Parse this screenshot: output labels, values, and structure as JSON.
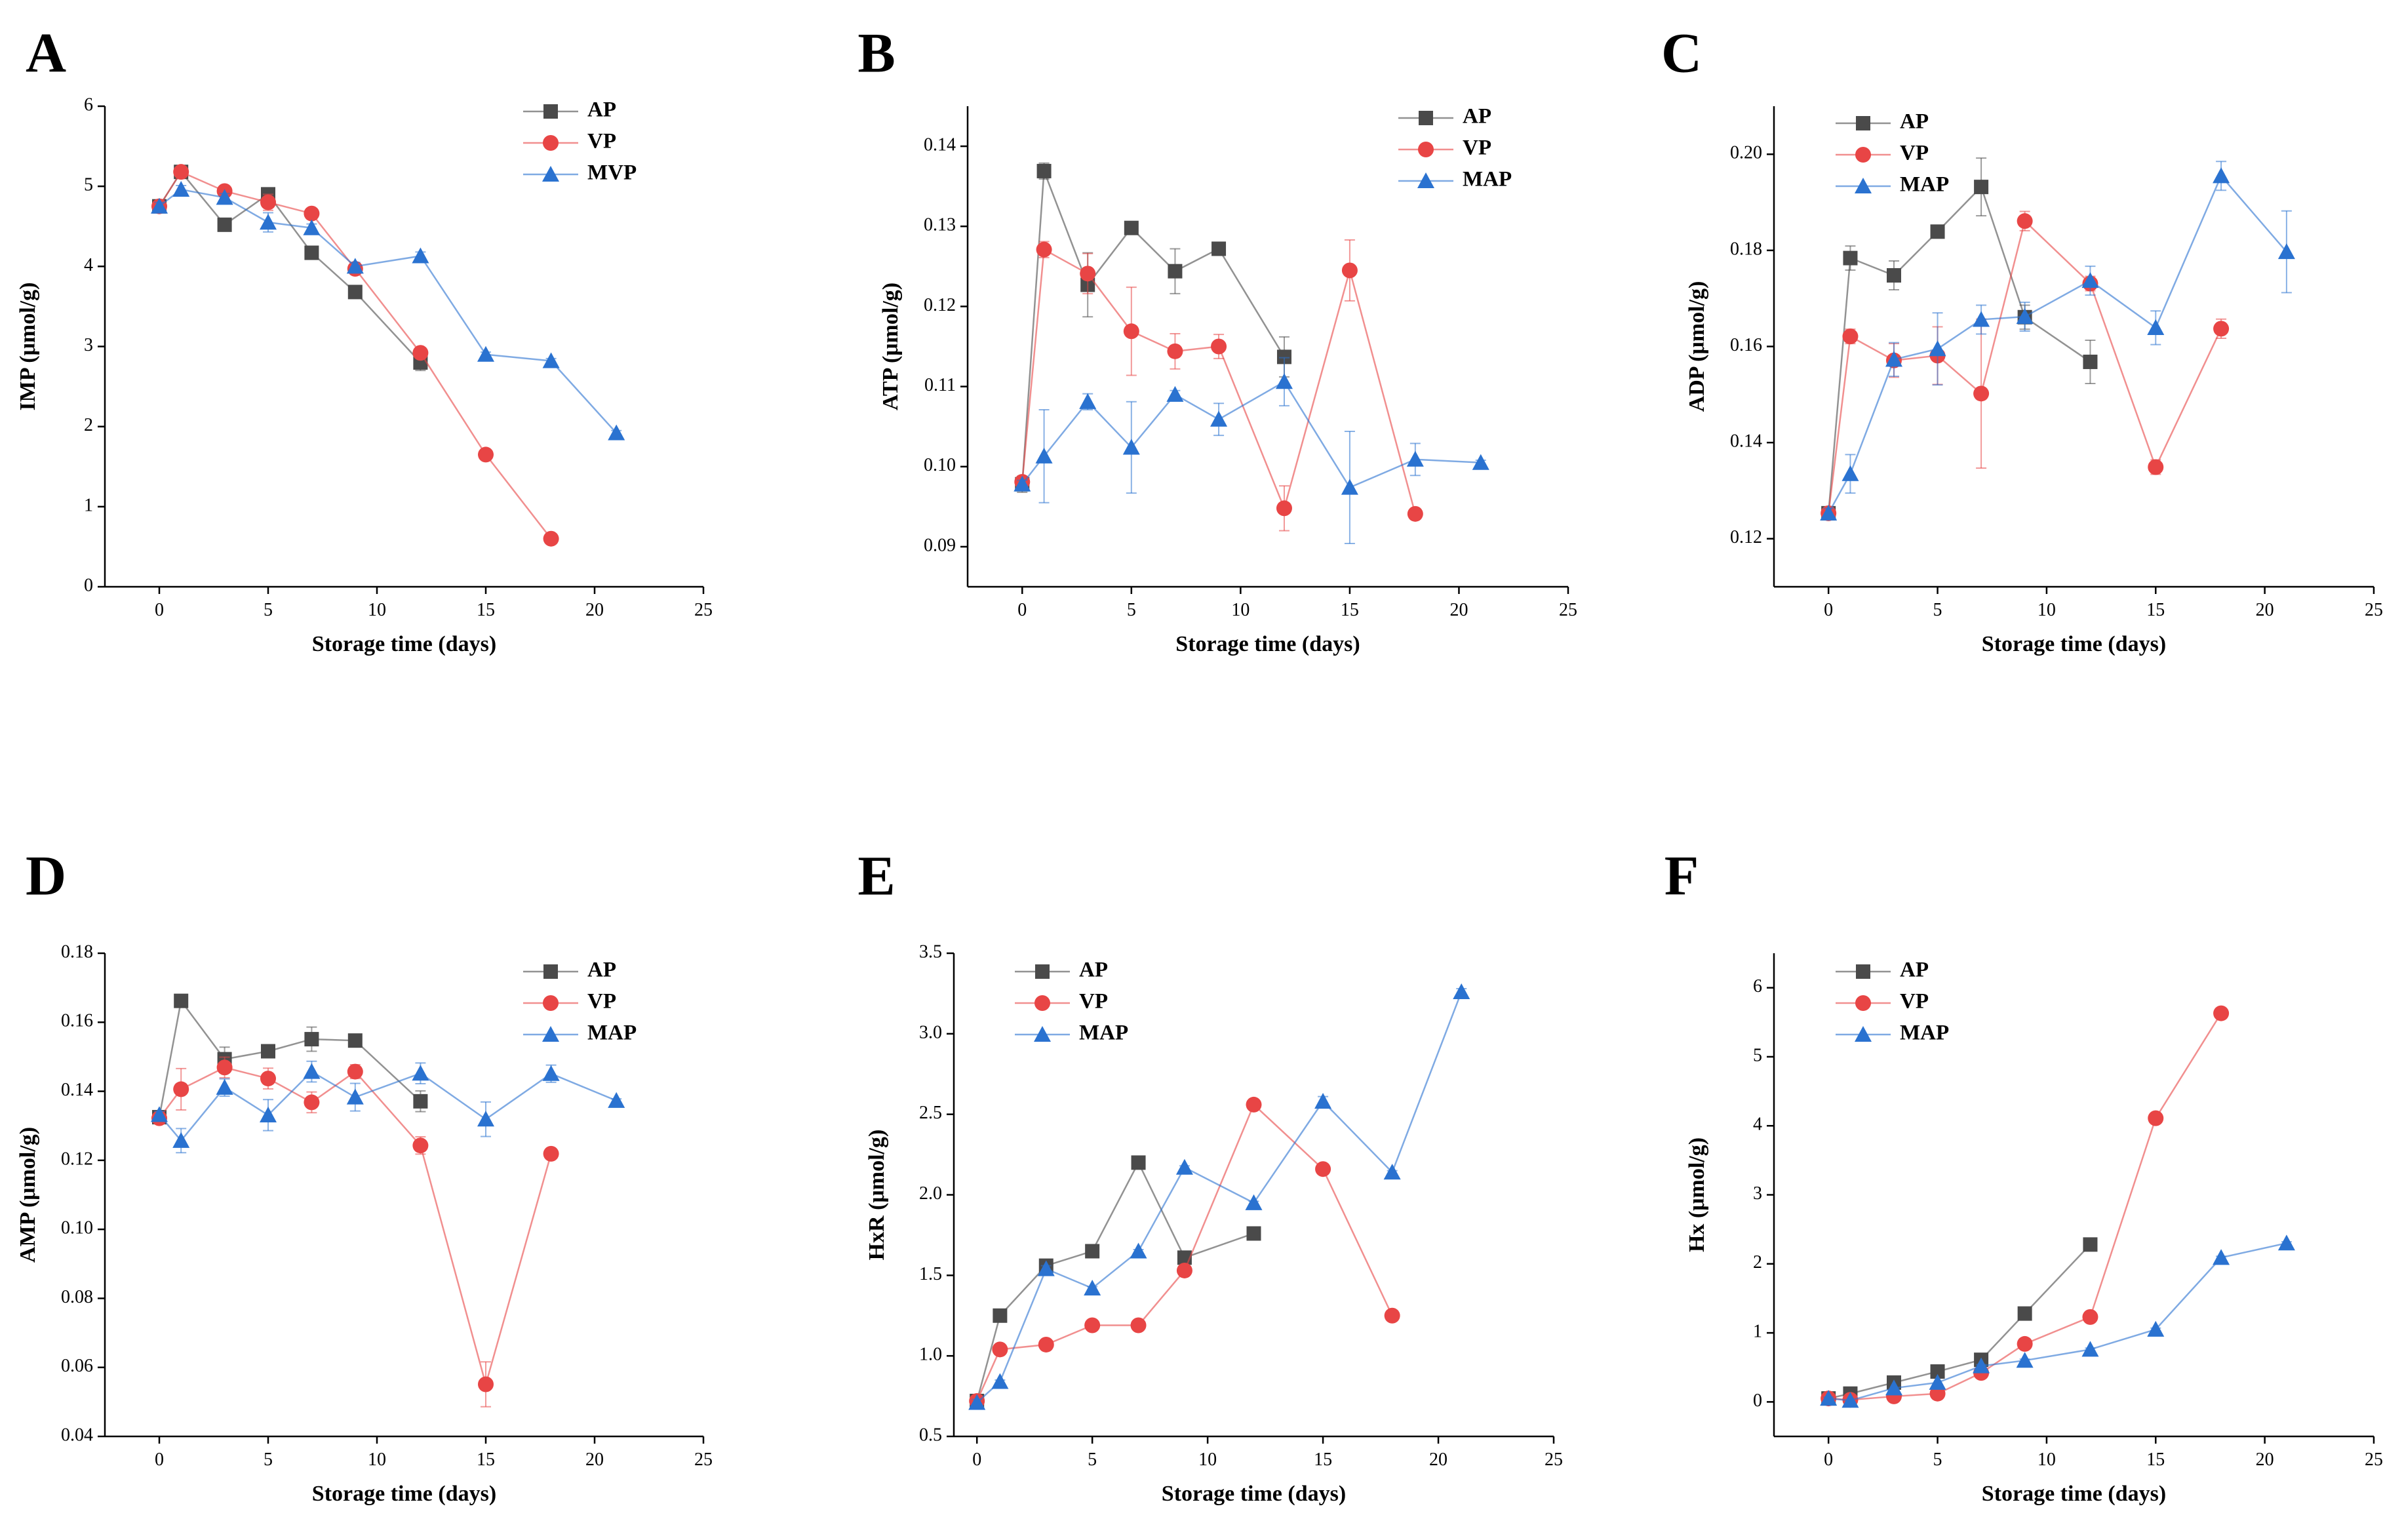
{
  "colors": {
    "AP": "#4a4a4a",
    "VP": "#e84545",
    "MAP": "#2a72d0",
    "MVP": "#2a72d0"
  },
  "chart_data": [
    {
      "panel": "A",
      "type": "line",
      "xlabel": "Storage time (days)",
      "ylabel": "IMP (μmol/g)",
      "xlim": [
        -2.5,
        25
      ],
      "ylim": [
        0,
        6
      ],
      "xticks": [
        0,
        5,
        10,
        15,
        20,
        25
      ],
      "yticks": [
        0,
        1,
        2,
        3,
        4,
        5,
        6
      ],
      "ytick_labels": [
        "0",
        "1",
        "2",
        "3",
        "4",
        "5",
        "6"
      ],
      "series": [
        {
          "name": "AP",
          "marker": "square",
          "x": [
            0,
            1,
            3,
            5,
            7,
            9,
            12
          ],
          "y": [
            4.75,
            5.18,
            4.52,
            4.9,
            4.17,
            3.68,
            2.8
          ],
          "err": [
            0.05,
            0.05,
            0.05,
            0.06,
            0.05,
            0.05,
            0.1
          ]
        },
        {
          "name": "VP",
          "marker": "circle",
          "x": [
            0,
            1,
            3,
            5,
            7,
            9,
            12,
            15,
            18
          ],
          "y": [
            4.75,
            5.18,
            4.94,
            4.8,
            4.66,
            3.97,
            2.92,
            1.65,
            0.6
          ],
          "err": [
            0.05,
            0.05,
            0.05,
            0.1,
            0.05,
            0.05,
            0.05,
            0.03,
            0.03
          ]
        },
        {
          "name": "MVP",
          "marker": "triangle",
          "x": [
            0,
            1,
            3,
            5,
            7,
            9,
            12,
            15,
            18,
            21
          ],
          "y": [
            4.75,
            4.96,
            4.86,
            4.55,
            4.48,
            4.0,
            4.13,
            2.9,
            2.82,
            1.92
          ],
          "err": [
            0.05,
            0.05,
            0.05,
            0.12,
            0.05,
            0.05,
            0.05,
            0.03,
            0.03,
            0.03
          ]
        }
      ]
    },
    {
      "panel": "B",
      "type": "line",
      "xlabel": "Storage time (days)",
      "ylabel": "ATP (μmol/g)",
      "xlim": [
        -2.5,
        25
      ],
      "ylim": [
        0.085,
        0.145
      ],
      "xticks": [
        0,
        5,
        10,
        15,
        20,
        25
      ],
      "yticks": [
        0.09,
        0.1,
        0.11,
        0.12,
        0.13,
        0.14
      ],
      "ytick_labels": [
        "0.09",
        "0.10",
        "0.11",
        "0.12",
        "0.13",
        "0.14"
      ],
      "series": [
        {
          "name": "AP",
          "marker": "square",
          "x": [
            0,
            1,
            3,
            5,
            7,
            9,
            12
          ],
          "y": [
            0.0978,
            0.1369,
            0.1227,
            0.1298,
            0.1244,
            0.1272,
            0.1137
          ],
          "err": [
            0.001,
            0.001,
            0.004,
            0.0005,
            0.0028,
            0.0008,
            0.0025
          ]
        },
        {
          "name": "VP",
          "marker": "circle",
          "x": [
            0,
            1,
            3,
            5,
            7,
            9,
            12,
            15,
            18
          ],
          "y": [
            0.0981,
            0.1271,
            0.1241,
            0.1169,
            0.1144,
            0.115,
            0.0948,
            0.1245,
            0.0941
          ],
          "err": [
            0.0005,
            0.001,
            0.0025,
            0.0055,
            0.0022,
            0.0015,
            0.0028,
            0.0038,
            0.0005
          ]
        },
        {
          "name": "MAP",
          "marker": "triangle",
          "x": [
            0,
            1,
            3,
            5,
            7,
            9,
            12,
            15,
            18,
            21
          ],
          "y": [
            0.0978,
            0.1013,
            0.1081,
            0.1024,
            0.109,
            0.1059,
            0.1106,
            0.0974,
            0.1009,
            0.1005
          ],
          "err": [
            0.0005,
            0.0058,
            0.001,
            0.0057,
            0.0005,
            0.002,
            0.003,
            0.007,
            0.002,
            0.0003
          ]
        }
      ]
    },
    {
      "panel": "C",
      "type": "line",
      "xlabel": "Storage time (days)",
      "ylabel": "ADP (μmol/g)",
      "xlim": [
        -2.5,
        25
      ],
      "ylim": [
        0.11,
        0.21
      ],
      "xticks": [
        0,
        5,
        10,
        15,
        20,
        25
      ],
      "yticks": [
        0.12,
        0.14,
        0.16,
        0.18,
        0.2
      ],
      "ytick_labels": [
        "0.12",
        "0.14",
        "0.16",
        "0.18",
        "0.20"
      ],
      "series": [
        {
          "name": "AP",
          "marker": "square",
          "x": [
            0,
            1,
            3,
            5,
            7,
            9,
            12
          ],
          "y": [
            0.1253,
            0.1784,
            0.1748,
            0.1839,
            0.1932,
            0.1661,
            0.1568
          ],
          "err": [
            0.001,
            0.0025,
            0.003,
            0.0005,
            0.006,
            0.0025,
            0.0045
          ]
        },
        {
          "name": "VP",
          "marker": "circle",
          "x": [
            0,
            1,
            3,
            5,
            7,
            9,
            12,
            15,
            18
          ],
          "y": [
            0.1253,
            0.1621,
            0.1571,
            0.1581,
            0.1502,
            0.1861,
            0.1731,
            0.1349,
            0.1637
          ],
          "err": [
            0.001,
            0.0015,
            0.0035,
            0.006,
            0.0155,
            0.002,
            0.0015,
            0.0015,
            0.002
          ]
        },
        {
          "name": "MAP",
          "marker": "triangle",
          "x": [
            0,
            1,
            3,
            5,
            7,
            9,
            12,
            15,
            18,
            21
          ],
          "y": [
            0.1253,
            0.1335,
            0.1573,
            0.1595,
            0.1656,
            0.1662,
            0.1737,
            0.1639,
            0.1955,
            0.1797
          ],
          "err": [
            0.001,
            0.004,
            0.0035,
            0.0075,
            0.003,
            0.003,
            0.003,
            0.0035,
            0.003,
            0.0085
          ]
        }
      ]
    },
    {
      "panel": "D",
      "type": "line",
      "xlabel": "Storage time (days)",
      "ylabel": "AMP (μmol/g)",
      "xlim": [
        -2.5,
        25
      ],
      "ylim": [
        0.04,
        0.18
      ],
      "xticks": [
        0,
        5,
        10,
        15,
        20,
        25
      ],
      "yticks": [
        0.04,
        0.06,
        0.08,
        0.1,
        0.12,
        0.14,
        0.16,
        0.18
      ],
      "ytick_labels": [
        "0.04",
        "0.06",
        "0.08",
        "0.10",
        "0.12",
        "0.14",
        "0.16",
        "0.18"
      ],
      "series": [
        {
          "name": "AP",
          "marker": "square",
          "x": [
            0,
            1,
            3,
            5,
            7,
            9,
            12
          ],
          "y": [
            0.1325,
            0.1662,
            0.1493,
            0.1516,
            0.1551,
            0.1547,
            0.1371
          ],
          "err": [
            0.001,
            0.0005,
            0.0035,
            0.0015,
            0.0035,
            0.001,
            0.003
          ]
        },
        {
          "name": "VP",
          "marker": "circle",
          "x": [
            0,
            1,
            3,
            5,
            7,
            9,
            12,
            15,
            18
          ],
          "y": [
            0.1322,
            0.1406,
            0.1469,
            0.1437,
            0.1368,
            0.1457,
            0.1243,
            0.0551,
            0.1219
          ],
          "err": [
            0.001,
            0.006,
            0.003,
            0.003,
            0.003,
            0.002,
            0.0025,
            0.0065,
            0.001
          ]
        },
        {
          "name": "MAP",
          "marker": "triangle",
          "x": [
            0,
            1,
            3,
            5,
            7,
            9,
            12,
            15,
            18,
            21
          ],
          "y": [
            0.1332,
            0.1257,
            0.1411,
            0.1331,
            0.1457,
            0.1383,
            0.1452,
            0.1319,
            0.1451,
            0.1373
          ],
          "err": [
            0.001,
            0.0035,
            0.0025,
            0.0045,
            0.003,
            0.004,
            0.003,
            0.005,
            0.0025,
            0.0005
          ]
        }
      ]
    },
    {
      "panel": "E",
      "type": "line",
      "xlabel": "Storage time (days)",
      "ylabel": "HxR (μmol/g)",
      "xlim": [
        -1,
        25
      ],
      "ylim": [
        0.5,
        3.5
      ],
      "xticks": [
        0,
        5,
        10,
        15,
        20,
        25
      ],
      "yticks": [
        0.5,
        1.0,
        1.5,
        2.0,
        2.5,
        3.0,
        3.5
      ],
      "ytick_labels": [
        "0.5",
        "1.0",
        "1.5",
        "2.0",
        "2.5",
        "3.0",
        "3.5"
      ],
      "series": [
        {
          "name": "AP",
          "marker": "square",
          "x": [
            0,
            1,
            3,
            5,
            7,
            9,
            12
          ],
          "y": [
            0.72,
            1.25,
            1.56,
            1.65,
            2.2,
            1.61,
            1.76
          ],
          "err": [
            0.02,
            0.01,
            0.02,
            0.01,
            0.01,
            0.01,
            0.02
          ]
        },
        {
          "name": "VP",
          "marker": "circle",
          "x": [
            0,
            1,
            3,
            5,
            7,
            9,
            12,
            15,
            18
          ],
          "y": [
            0.72,
            1.04,
            1.07,
            1.19,
            1.19,
            1.53,
            2.56,
            2.16,
            1.25
          ],
          "err": [
            0.02,
            0.01,
            0.01,
            0.01,
            0.01,
            0.01,
            0.01,
            0.01,
            0.01
          ]
        },
        {
          "name": "MAP",
          "marker": "triangle",
          "x": [
            0,
            1,
            3,
            5,
            7,
            9,
            12,
            15,
            18,
            21
          ],
          "y": [
            0.71,
            0.84,
            1.54,
            1.42,
            1.65,
            2.17,
            1.95,
            2.58,
            2.14,
            3.26
          ],
          "err": [
            0.02,
            0.01,
            0.02,
            0.01,
            0.01,
            0.01,
            0.01,
            0.03,
            0.01,
            0.02
          ]
        }
      ]
    },
    {
      "panel": "F",
      "type": "line",
      "xlabel": "Storage time (days)",
      "ylabel": "Hx (μmol/g)",
      "xlim": [
        -2.5,
        25
      ],
      "ylim": [
        -0.5,
        6.5
      ],
      "xticks": [
        0,
        5,
        10,
        15,
        20,
        25
      ],
      "yticks": [
        0,
        1,
        2,
        3,
        4,
        5,
        6
      ],
      "ytick_labels": [
        "0",
        "1",
        "2",
        "3",
        "4",
        "5",
        "6"
      ],
      "series": [
        {
          "name": "AP",
          "marker": "square",
          "x": [
            0,
            1,
            3,
            5,
            7,
            9,
            12
          ],
          "y": [
            0.05,
            0.12,
            0.28,
            0.44,
            0.61,
            1.28,
            2.28
          ],
          "err": [
            0.02,
            0.01,
            0.01,
            0.01,
            0.02,
            0.02,
            0.02
          ]
        },
        {
          "name": "VP",
          "marker": "circle",
          "x": [
            0,
            1,
            3,
            5,
            7,
            9,
            12,
            15,
            18
          ],
          "y": [
            0.05,
            0.03,
            0.08,
            0.12,
            0.42,
            0.84,
            1.23,
            4.11,
            5.63
          ],
          "err": [
            0.02,
            0.01,
            0.01,
            0.01,
            0.02,
            0.02,
            0.02,
            0.02,
            0.02
          ]
        },
        {
          "name": "MAP",
          "marker": "triangle",
          "x": [
            0,
            1,
            3,
            5,
            7,
            9,
            12,
            15,
            18,
            21
          ],
          "y": [
            0.05,
            0.02,
            0.2,
            0.28,
            0.52,
            0.6,
            0.76,
            1.05,
            2.09,
            2.3
          ],
          "err": [
            0.02,
            0.01,
            0.01,
            0.01,
            0.02,
            0.02,
            0.02,
            0.02,
            0.02,
            0.02
          ]
        }
      ]
    }
  ]
}
